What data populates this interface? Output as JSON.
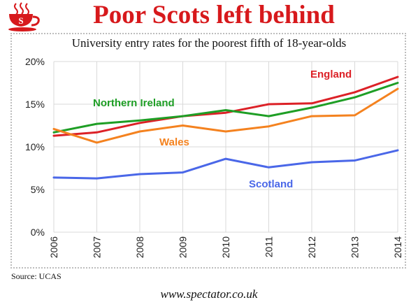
{
  "header": {
    "title": "Poor Scots left behind",
    "logo_icon": "spectator-teacup-icon",
    "logo_letter": "S"
  },
  "footer": {
    "source": "Source: UCAS",
    "website": "www.spectator.co.uk"
  },
  "colors": {
    "title": "#d7191c",
    "England": "#dc2127",
    "Northern Ireland": "#1e9e25",
    "Wales": "#f4821f",
    "Scotland": "#4a67e8"
  },
  "chart_data": {
    "type": "line",
    "title": "University entry rates for the poorest fifth of 18-year-olds",
    "x": [
      "2006",
      "2007",
      "2008",
      "2009",
      "2010",
      "2011",
      "2012",
      "2013",
      "2014"
    ],
    "y_ticks": [
      "0%",
      "5%",
      "10%",
      "15%",
      "20%"
    ],
    "ylim": [
      0,
      20
    ],
    "y_unit": "%",
    "grid": true,
    "legend": "labels placed next to each line",
    "series": [
      {
        "name": "England",
        "values": [
          11.3,
          11.7,
          12.8,
          13.6,
          14.0,
          15.0,
          15.1,
          16.4,
          18.2
        ]
      },
      {
        "name": "Northern Ireland",
        "values": [
          11.7,
          12.7,
          13.1,
          13.6,
          14.3,
          13.6,
          14.6,
          15.8,
          17.5
        ]
      },
      {
        "name": "Wales",
        "values": [
          12.1,
          10.5,
          11.8,
          12.5,
          11.8,
          12.4,
          13.6,
          13.7,
          16.8
        ]
      },
      {
        "name": "Scotland",
        "values": [
          6.4,
          6.3,
          6.8,
          7.0,
          8.6,
          7.6,
          8.2,
          8.4,
          9.6
        ]
      }
    ]
  }
}
